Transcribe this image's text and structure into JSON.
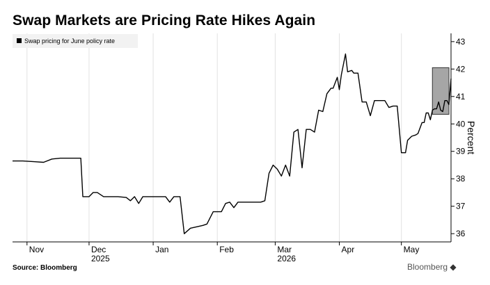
{
  "header": {
    "title": "Swap Markets are Pricing Rate Hikes Again"
  },
  "footer": {
    "source": "Source: Bloomberg",
    "watermark": "Bloomberg"
  },
  "chart_data": {
    "type": "line",
    "title": "Swap Markets are Pricing Rate Hikes Again",
    "xlabel": "",
    "ylabel": "Percent",
    "ylim": [
      35.7,
      43.3
    ],
    "yticks": [
      36,
      37,
      38,
      39,
      40,
      41,
      42,
      43
    ],
    "xlim": [
      "2025-10-25",
      "2026-05-25"
    ],
    "xticks": [
      {
        "date": "2025-11-01",
        "label": "Nov"
      },
      {
        "date": "2025-12-01",
        "label": "Dec"
      },
      {
        "date": "2026-01-01",
        "label": "Jan"
      },
      {
        "date": "2026-02-01",
        "label": "Feb"
      },
      {
        "date": "2026-03-01",
        "label": "Mar"
      },
      {
        "date": "2026-04-01",
        "label": "Apr"
      },
      {
        "date": "2026-05-01",
        "label": "May"
      }
    ],
    "year_labels": [
      {
        "date": "2025-12-01",
        "label": "2025"
      },
      {
        "date": "2026-03-01",
        "label": "2026"
      }
    ],
    "grid": "vertical",
    "legend": "top-left",
    "highlight": {
      "x0": "2026-05-16",
      "x1": "2026-05-24",
      "y0": 40.35,
      "y1": 42.05
    },
    "series": [
      {
        "name": "Swap pricing for June policy rate",
        "color": "#000000",
        "points": [
          [
            "2025-10-25",
            38.65
          ],
          [
            "2025-10-30",
            38.65
          ],
          [
            "2025-11-05",
            38.62
          ],
          [
            "2025-11-09",
            38.6
          ],
          [
            "2025-11-13",
            38.72
          ],
          [
            "2025-11-17",
            38.75
          ],
          [
            "2025-11-21",
            38.75
          ],
          [
            "2025-11-25",
            38.75
          ],
          [
            "2025-11-27",
            38.75
          ],
          [
            "2025-11-28",
            37.35
          ],
          [
            "2025-12-01",
            37.35
          ],
          [
            "2025-12-03",
            37.5
          ],
          [
            "2025-12-05",
            37.5
          ],
          [
            "2025-12-08",
            37.35
          ],
          [
            "2025-12-11",
            37.35
          ],
          [
            "2025-12-15",
            37.35
          ],
          [
            "2025-12-19",
            37.32
          ],
          [
            "2025-12-21",
            37.2
          ],
          [
            "2025-12-23",
            37.35
          ],
          [
            "2025-12-25",
            37.1
          ],
          [
            "2025-12-27",
            37.35
          ],
          [
            "2026-01-01",
            37.35
          ],
          [
            "2026-01-05",
            37.35
          ],
          [
            "2026-01-07",
            37.35
          ],
          [
            "2026-01-09",
            37.15
          ],
          [
            "2026-01-11",
            37.35
          ],
          [
            "2026-01-14",
            37.35
          ],
          [
            "2026-01-16",
            36.0
          ],
          [
            "2026-01-19",
            36.2
          ],
          [
            "2026-01-22",
            36.25
          ],
          [
            "2026-01-25",
            36.3
          ],
          [
            "2026-01-27",
            36.35
          ],
          [
            "2026-01-30",
            36.8
          ],
          [
            "2026-02-03",
            36.8
          ],
          [
            "2026-02-05",
            37.1
          ],
          [
            "2026-02-07",
            37.15
          ],
          [
            "2026-02-09",
            36.95
          ],
          [
            "2026-02-11",
            37.15
          ],
          [
            "2026-02-14",
            37.15
          ],
          [
            "2026-02-17",
            37.15
          ],
          [
            "2026-02-20",
            37.15
          ],
          [
            "2026-02-22",
            37.15
          ],
          [
            "2026-02-24",
            37.2
          ],
          [
            "2026-02-26",
            38.2
          ],
          [
            "2026-02-28",
            38.5
          ],
          [
            "2026-03-02",
            38.35
          ],
          [
            "2026-03-04",
            38.1
          ],
          [
            "2026-03-06",
            38.5
          ],
          [
            "2026-03-08",
            38.1
          ],
          [
            "2026-03-10",
            39.7
          ],
          [
            "2026-03-12",
            39.8
          ],
          [
            "2026-03-14",
            38.4
          ],
          [
            "2026-03-16",
            39.8
          ],
          [
            "2026-03-18",
            39.8
          ],
          [
            "2026-03-20",
            39.7
          ],
          [
            "2026-03-22",
            40.5
          ],
          [
            "2026-03-24",
            40.45
          ],
          [
            "2026-03-26",
            41.1
          ],
          [
            "2026-03-28",
            41.3
          ],
          [
            "2026-03-29",
            41.3
          ],
          [
            "2026-03-31",
            41.7
          ],
          [
            "2026-04-01",
            41.25
          ],
          [
            "2026-04-02",
            41.8
          ],
          [
            "2026-04-04",
            42.55
          ],
          [
            "2026-04-05",
            41.9
          ],
          [
            "2026-04-07",
            41.95
          ],
          [
            "2026-04-08",
            41.85
          ],
          [
            "2026-04-10",
            41.85
          ],
          [
            "2026-04-12",
            40.8
          ],
          [
            "2026-04-14",
            40.8
          ],
          [
            "2026-04-16",
            40.3
          ],
          [
            "2026-04-18",
            40.85
          ],
          [
            "2026-04-21",
            40.85
          ],
          [
            "2026-04-23",
            40.85
          ],
          [
            "2026-04-25",
            40.6
          ],
          [
            "2026-04-27",
            40.65
          ],
          [
            "2026-04-29",
            40.65
          ],
          [
            "2026-05-01",
            38.95
          ],
          [
            "2026-05-03",
            38.95
          ],
          [
            "2026-05-04",
            39.4
          ],
          [
            "2026-05-06",
            39.55
          ],
          [
            "2026-05-08",
            39.6
          ],
          [
            "2026-05-09",
            39.65
          ],
          [
            "2026-05-11",
            40.05
          ],
          [
            "2026-05-12",
            40.05
          ],
          [
            "2026-05-13",
            40.4
          ],
          [
            "2026-05-14",
            40.4
          ],
          [
            "2026-05-15",
            40.15
          ],
          [
            "2026-05-16",
            40.5
          ],
          [
            "2026-05-17",
            40.55
          ],
          [
            "2026-05-18",
            40.55
          ],
          [
            "2026-05-19",
            40.8
          ],
          [
            "2026-05-20",
            40.5
          ],
          [
            "2026-05-21",
            40.45
          ],
          [
            "2026-05-22",
            40.85
          ],
          [
            "2026-05-23",
            40.85
          ],
          [
            "2026-05-24",
            40.7
          ],
          [
            "2026-05-25",
            41.65
          ]
        ]
      }
    ]
  }
}
